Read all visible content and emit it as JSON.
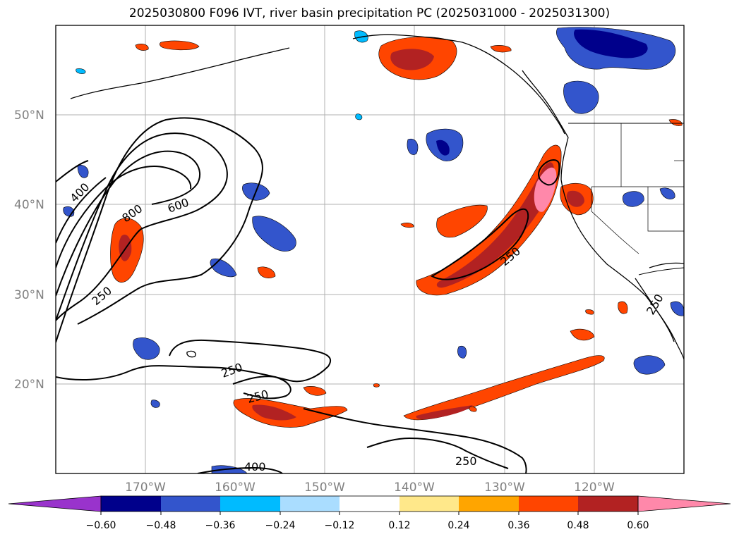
{
  "title": "2025030800 F096 IVT, river basin precipitation PC (2025031000 - 2025031300)",
  "lat_labels": [
    "50°N",
    "40°N",
    "30°N",
    "20°N"
  ],
  "lon_labels": [
    "170°W",
    "160°W",
    "150°W",
    "140°W",
    "130°W",
    "120°W"
  ],
  "colorbar": {
    "tick_labels": [
      "−0.60",
      "−0.48",
      "−0.36",
      "−0.24",
      "−0.12",
      "0.12",
      "0.24",
      "0.36",
      "0.48",
      "0.60"
    ],
    "colors": [
      "#9933cc",
      "#00008b",
      "#3355cc",
      "#00bbff",
      "#aaddff",
      "#ffffff",
      "#ffe88a",
      "#ffa500",
      "#ff4500",
      "#b22222",
      "#ff88aa"
    ]
  },
  "contour_labels": [
    "400",
    "800",
    "600",
    "250",
    "250",
    "250",
    "250",
    "250",
    "400",
    "250"
  ],
  "colors": {
    "coast": "#000000",
    "grid": "#b0b0b0",
    "contour": "#000000",
    "axis_label": "#808080"
  }
}
